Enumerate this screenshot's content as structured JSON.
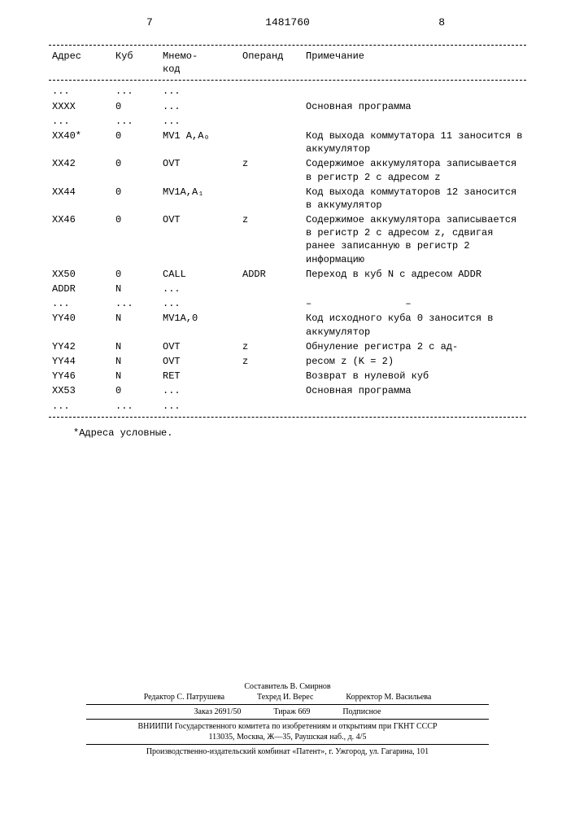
{
  "doc_number": "1481760",
  "page_left": "7",
  "page_right": "8",
  "table": {
    "headers": [
      "Адрес",
      "Куб",
      "Мнемо-\nкод",
      "Операнд",
      "Примечание"
    ],
    "rows": [
      {
        "addr": "...",
        "kub": "...",
        "mnem": "...",
        "op": "",
        "note": ""
      },
      {
        "addr": "XXXX",
        "kub": "0",
        "mnem": "...",
        "op": "",
        "note": "Основная программа"
      },
      {
        "addr": "...",
        "kub": "...",
        "mnem": "...",
        "op": "",
        "note": ""
      },
      {
        "addr": "XX40*",
        "kub": "0",
        "mnem": "MV1 A,A₀",
        "op": "",
        "note": "Код выхода коммутатора 11 заносится в аккумулятор"
      },
      {
        "addr": "XX42",
        "kub": "0",
        "mnem": "OVT",
        "op": "z",
        "note": "Содержимое аккумулятора записывается в регистр 2 с адресом z"
      },
      {
        "addr": "XX44",
        "kub": "0",
        "mnem": "MV1A,A₁",
        "op": "",
        "note": "Код выхода коммутаторов 12 заносится в аккумулятор"
      },
      {
        "addr": "XX46",
        "kub": "0",
        "mnem": "OVT",
        "op": "z",
        "note": "Содержимое аккумулятора записывается в регистр 2 с адресом z, сдвигая ранее записанную в регистр 2 информацию"
      },
      {
        "addr": "XX50",
        "kub": "0",
        "mnem": "CALL",
        "op": "ADDR",
        "note": "Переход в куб N с адресом ADDR"
      },
      {
        "addr": "ADDR",
        "kub": "N",
        "mnem": "...",
        "op": "",
        "note": ""
      },
      {
        "addr": "...",
        "kub": "...",
        "mnem": "...",
        "op": "",
        "note": "–                –"
      },
      {
        "addr": "YY40",
        "kub": "N",
        "mnem": "MV1A,0",
        "op": "",
        "note": "Код исходного куба 0 заносится в аккумулятор"
      },
      {
        "addr": "YY42",
        "kub": "N",
        "mnem": "OVT",
        "op": "z",
        "note": "Обнуление регистра 2 с ад-"
      },
      {
        "addr": "YY44",
        "kub": "N",
        "mnem": "OVT",
        "op": "z",
        "note": "ресом z (K = 2)"
      },
      {
        "addr": "YY46",
        "kub": "N",
        "mnem": "RET",
        "op": "",
        "note": "Возврат в нулевой куб"
      },
      {
        "addr": "XX53",
        "kub": "0",
        "mnem": "...",
        "op": "",
        "note": "Основная программа"
      },
      {
        "addr": "...",
        "kub": "...",
        "mnem": "...",
        "op": "",
        "note": ""
      }
    ]
  },
  "footnote": "*Адреса условные.",
  "pub": {
    "compiler": "Составитель В. Смирнов",
    "editor": "Редактор С. Патрушева",
    "tech": "Техред И. Верес",
    "corrector": "Корректор М. Васильева",
    "order": "Заказ 2691/50",
    "tirage": "Тираж 669",
    "subscribe": "Подписное",
    "org": "ВНИИПИ Государственного комитета по изобретениям и открытиям при ГКНТ СССР",
    "addr1": "113035, Москва, Ж—35, Раушская наб., д. 4/5",
    "addr2": "Производственно-издательский комбинат «Патент», г. Ужгород, ул. Гагарина, 101"
  }
}
